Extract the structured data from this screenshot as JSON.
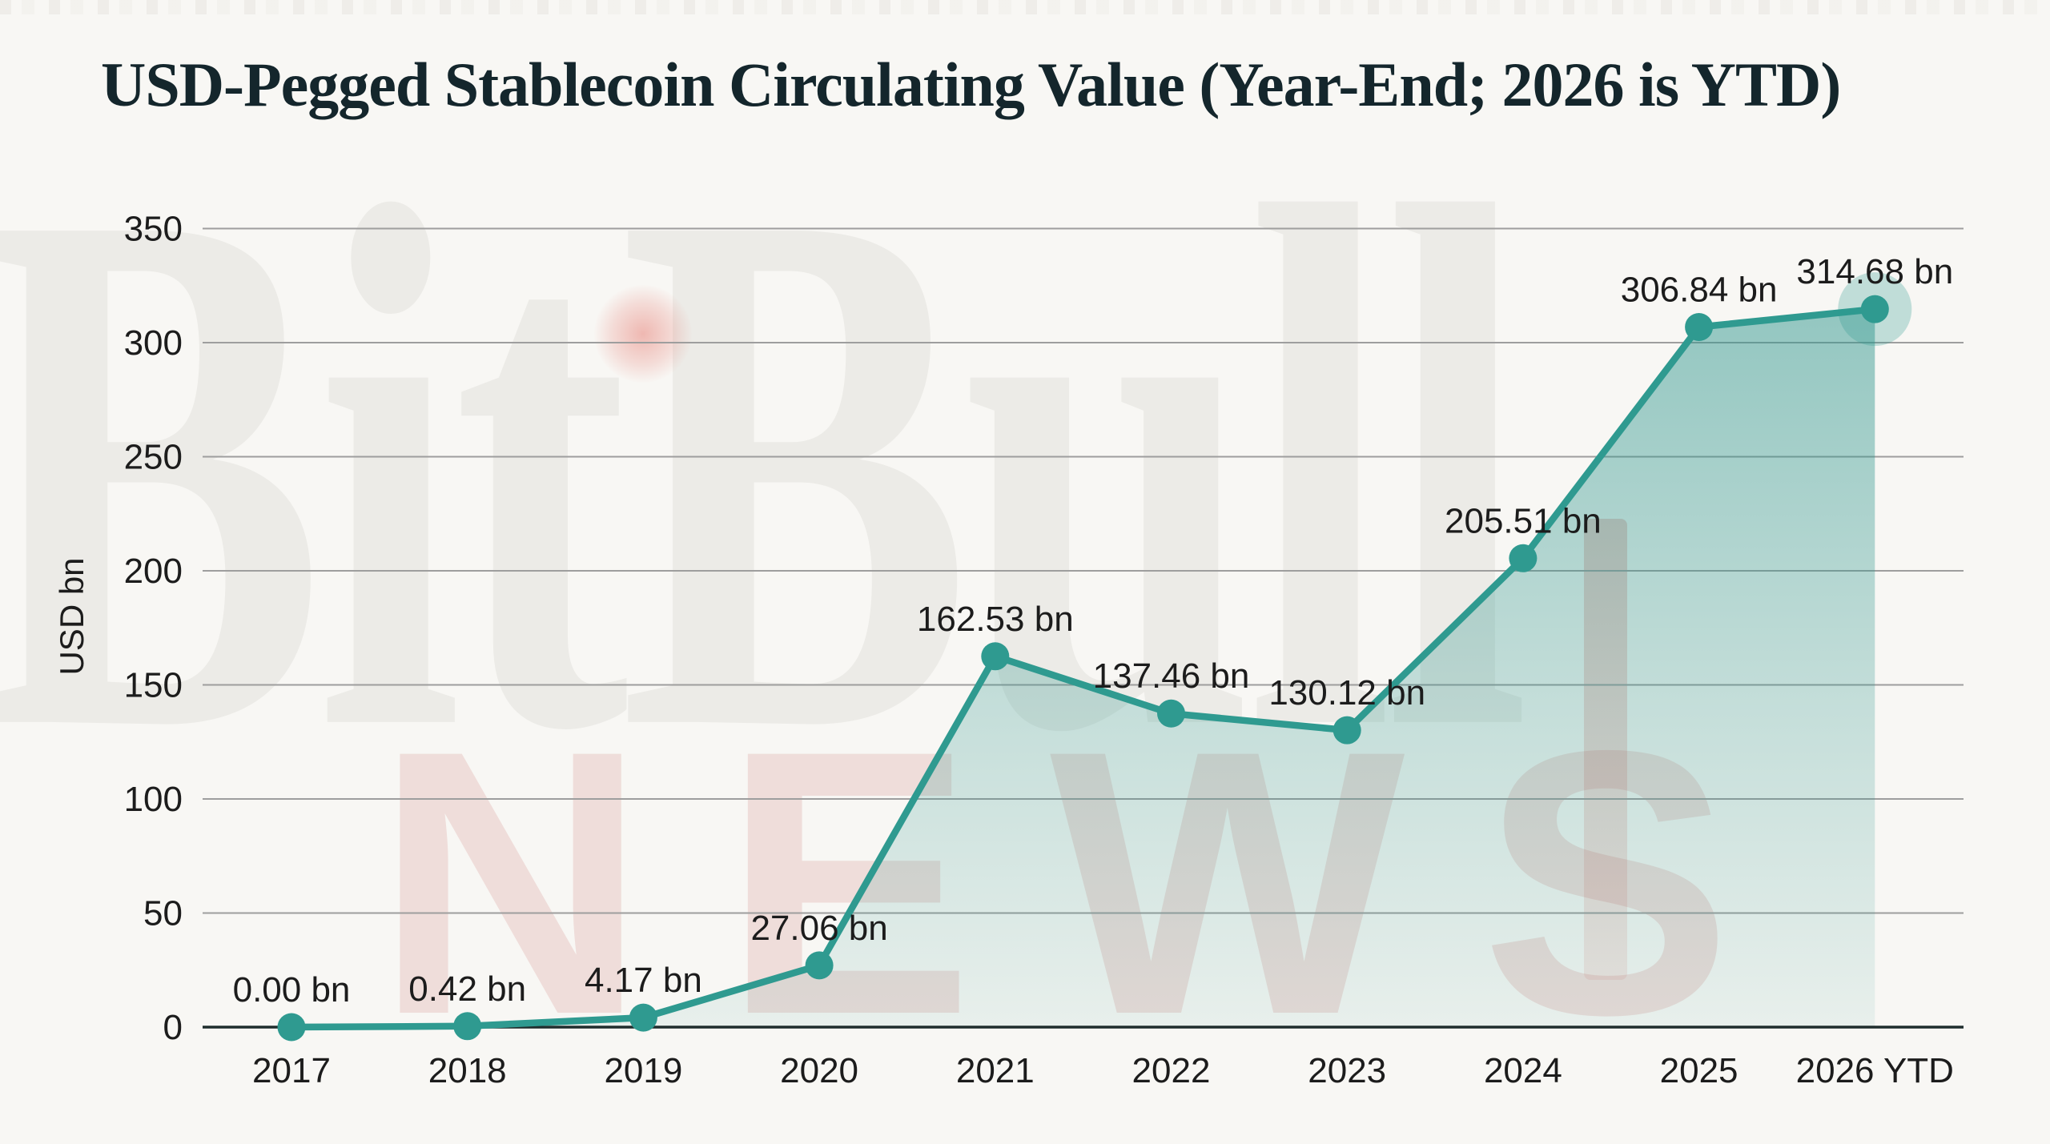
{
  "title": "USD-Pegged Stablecoin Circulating Value (Year-End; 2026 is YTD)",
  "watermark": {
    "brand": "BitBull",
    "tagline": "NEWS"
  },
  "colors": {
    "background": "#f8f7f4",
    "title_text": "#14262c",
    "line": "#2f9a90",
    "dot": "#2f9a90",
    "last_point_halo": "rgba(47,154,144,0.28)",
    "fill_top": "rgba(47,150,141,0.50)",
    "fill_mid": "rgba(47,150,141,0.26)",
    "fill_bottom": "rgba(47,150,141,0.08)",
    "gridline": "#9e9e9e",
    "axis_baseline": "#1f2d2d",
    "tick_text": "#1c1c1c",
    "data_label_text": "#1c1c1c",
    "watermark_gray": "#ecebe7",
    "watermark_pink": "rgba(203,118,115,0.20)",
    "watermark_red": "rgba(226,96,85,0.42)"
  },
  "chart_data": {
    "type": "line",
    "title": "USD-Pegged Stablecoin Circulating Value (Year-End; 2026 is YTD)",
    "xlabel": "",
    "ylabel": "USD bn",
    "categories": [
      "2017",
      "2018",
      "2019",
      "2020",
      "2021",
      "2022",
      "2023",
      "2024",
      "2025",
      "2026 YTD"
    ],
    "values": [
      0.0,
      0.42,
      4.17,
      27.06,
      162.53,
      137.46,
      130.12,
      205.51,
      306.84,
      314.68
    ],
    "point_labels": [
      "0.00 bn",
      "0.42 bn",
      "4.17 bn",
      "27.06 bn",
      "162.53 bn",
      "137.46 bn",
      "130.12 bn",
      "205.51 bn",
      "306.84 bn",
      "314.68 bn"
    ],
    "yticks": [
      0,
      50,
      100,
      150,
      200,
      250,
      300,
      350
    ],
    "ylim": [
      0,
      350
    ],
    "grid": true,
    "legend": false,
    "area_fill": true,
    "fill_right_edge_at_last_point": true,
    "last_point_highlighted": true
  }
}
